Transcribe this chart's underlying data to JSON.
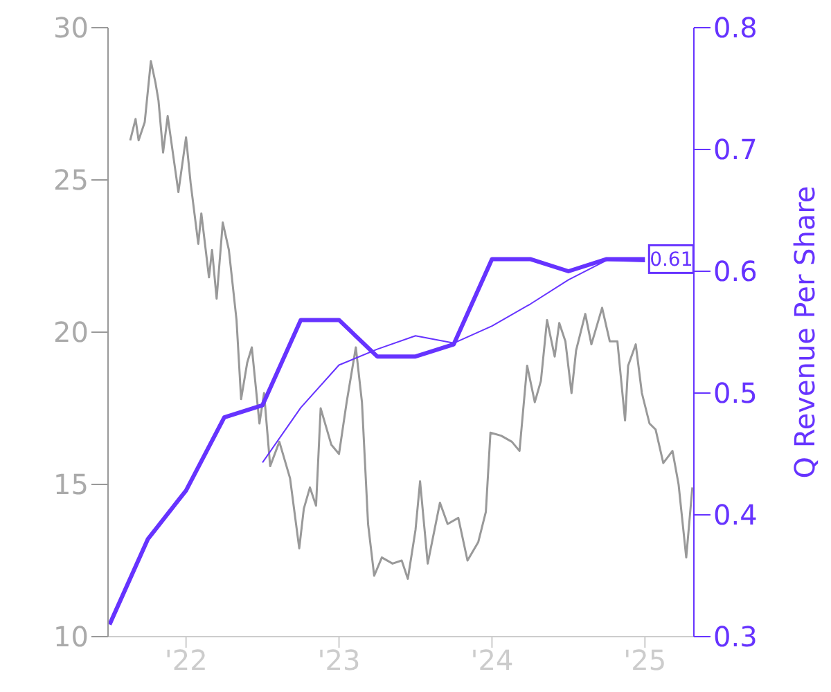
{
  "chart_data": {
    "type": "line",
    "y2label": "Q Revenue Per Share",
    "xlim": [
      2021.49,
      2025.32
    ],
    "xticks": [
      {
        "value": 2022,
        "label": "'22"
      },
      {
        "value": 2023,
        "label": "'23"
      },
      {
        "value": 2024,
        "label": "'24"
      },
      {
        "value": 2025,
        "label": "'25"
      }
    ],
    "ylim": [
      10,
      30
    ],
    "yticks": [
      10,
      15,
      20,
      25,
      30
    ],
    "y2lim": [
      0.3,
      0.8
    ],
    "y2ticks": [
      0.3,
      0.4,
      0.5,
      0.6,
      0.7,
      0.8
    ],
    "marker": "none",
    "series": [
      {
        "color": "#999999",
        "x": [
          2021.635,
          2021.67,
          2021.69,
          2021.73,
          2021.77,
          2021.8,
          2021.82,
          2021.85,
          2021.88,
          2021.95,
          2022.0,
          2022.03,
          2022.08,
          2022.1,
          2022.15,
          2022.17,
          2022.2,
          2022.24,
          2022.28,
          2022.33,
          2022.36,
          2022.4,
          2022.43,
          2022.48,
          2022.51,
          2022.55,
          2022.61,
          2022.68,
          2022.74,
          2022.77,
          2022.81,
          2022.85,
          2022.88,
          2022.95,
          2023.0,
          2023.05,
          2023.11,
          2023.15,
          2023.19,
          2023.23,
          2023.28,
          2023.35,
          2023.41,
          2023.45,
          2023.5,
          2023.53,
          2023.58,
          2023.66,
          2023.71,
          2023.78,
          2023.84,
          2023.91,
          2023.96,
          2023.99,
          2024.06,
          2024.13,
          2024.18,
          2024.23,
          2024.28,
          2024.32,
          2024.36,
          2024.41,
          2024.44,
          2024.48,
          2024.52,
          2024.55,
          2024.61,
          2024.65,
          2024.72,
          2024.77,
          2024.82,
          2024.87,
          2024.89,
          2024.94,
          2024.98,
          2025.03,
          2025.07,
          2025.12,
          2025.18,
          2025.22,
          2025.27,
          2025.31
        ],
        "values": [
          26.3,
          27.0,
          26.3,
          26.9,
          28.9,
          28.2,
          27.6,
          25.9,
          27.1,
          24.6,
          26.4,
          24.9,
          22.9,
          23.9,
          21.8,
          22.7,
          21.1,
          23.6,
          22.7,
          20.4,
          17.8,
          19.0,
          19.5,
          17.0,
          18.0,
          15.6,
          16.4,
          15.2,
          12.9,
          14.2,
          14.9,
          14.3,
          17.5,
          16.3,
          16.0,
          17.7,
          19.5,
          17.7,
          13.7,
          12.0,
          12.6,
          12.4,
          12.5,
          11.9,
          13.5,
          15.1,
          12.4,
          14.4,
          13.7,
          13.9,
          12.5,
          13.1,
          14.1,
          16.7,
          16.6,
          16.4,
          16.1,
          18.9,
          17.7,
          18.4,
          20.4,
          19.2,
          20.3,
          19.7,
          18.0,
          19.4,
          20.6,
          19.6,
          20.8,
          19.7,
          19.7,
          17.1,
          18.9,
          19.6,
          18.0,
          17.0,
          16.8,
          15.7,
          16.1,
          15.0,
          12.6,
          14.9
        ]
      },
      {
        "color": "#6633ff",
        "axis": "y2",
        "x": [
          2021.5,
          2021.75,
          2022.0,
          2022.25,
          2022.5,
          2022.75,
          2023.0,
          2023.25,
          2023.5,
          2023.75,
          2024.0,
          2024.25,
          2024.5,
          2024.75,
          2025.0
        ],
        "values": [
          0.31,
          0.38,
          0.42,
          0.48,
          0.49,
          0.56,
          0.56,
          0.53,
          0.53,
          0.54,
          0.61,
          0.61,
          0.6,
          0.61,
          0.61
        ],
        "value_labels": [
          null,
          null,
          null,
          null,
          null,
          null,
          null,
          null,
          null,
          null,
          null,
          null,
          null,
          null,
          "0.61"
        ]
      },
      {
        "color": "#6633ff",
        "axis": "y2",
        "x": [
          2022.5,
          2022.75,
          2023.0,
          2023.25,
          2023.5,
          2023.75,
          2024.0,
          2024.25,
          2024.5,
          2024.75,
          2025.0
        ],
        "values": [
          0.443,
          0.488,
          0.523,
          0.536,
          0.547,
          0.541,
          0.555,
          0.573,
          0.593,
          0.609,
          0.608
        ]
      }
    ]
  }
}
